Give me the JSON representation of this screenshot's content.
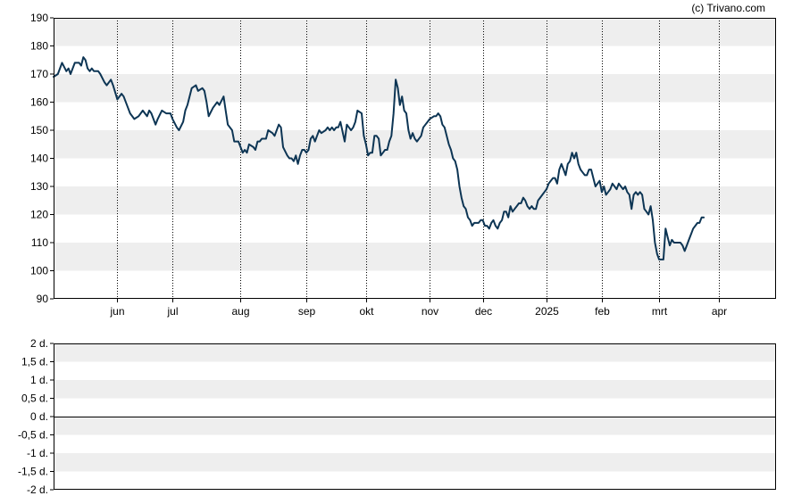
{
  "credit": "(c) Trivano.com",
  "colors": {
    "line": "#0d3554",
    "band": "#eeeeee",
    "grid": "#000000",
    "axis": "#000000"
  },
  "chart_data": [
    {
      "type": "line",
      "title": "",
      "xlabel": "",
      "ylabel": "",
      "ylim": [
        90,
        190
      ],
      "yticks": [
        "190",
        "180",
        "170",
        "160",
        "150",
        "140",
        "130",
        "120",
        "110",
        "100",
        "90"
      ],
      "xticks": [
        "jun",
        "jul",
        "aug",
        "sep",
        "okt",
        "nov",
        "dec",
        "2025",
        "feb",
        "mrt",
        "apr"
      ],
      "x_range_days": [
        0,
        340
      ],
      "xtick_days": [
        30,
        56,
        88,
        119,
        147,
        177,
        202,
        232,
        258,
        285,
        313
      ],
      "grid": "vertical dotted at month starts",
      "series": [
        {
          "points": [
            [
              0,
              169
            ],
            [
              2,
              170
            ],
            [
              4,
              174
            ],
            [
              6,
              171
            ],
            [
              7,
              172
            ],
            [
              8,
              170
            ],
            [
              10,
              174
            ],
            [
              12,
              174
            ],
            [
              13,
              173
            ],
            [
              14,
              176
            ],
            [
              15,
              175
            ],
            [
              16,
              172
            ],
            [
              17,
              171
            ],
            [
              18,
              172
            ],
            [
              19,
              171
            ],
            [
              21,
              171
            ],
            [
              22,
              170
            ],
            [
              24,
              167
            ],
            [
              25,
              166
            ],
            [
              27,
              168
            ],
            [
              28,
              166
            ],
            [
              30,
              161
            ],
            [
              32,
              163
            ],
            [
              33,
              162
            ],
            [
              35,
              158
            ],
            [
              36,
              156
            ],
            [
              38,
              154
            ],
            [
              40,
              155
            ],
            [
              42,
              157
            ],
            [
              43,
              156
            ],
            [
              44,
              155
            ],
            [
              45,
              157
            ],
            [
              46,
              156
            ],
            [
              48,
              152
            ],
            [
              49,
              154
            ],
            [
              51,
              157
            ],
            [
              53,
              156
            ],
            [
              55,
              156
            ],
            [
              56,
              154
            ],
            [
              58,
              151
            ],
            [
              59,
              150
            ],
            [
              61,
              153
            ],
            [
              62,
              157
            ],
            [
              63,
              159
            ],
            [
              65,
              165
            ],
            [
              67,
              166
            ],
            [
              68,
              164
            ],
            [
              70,
              165
            ],
            [
              71,
              164
            ],
            [
              72,
              160
            ],
            [
              73,
              155
            ],
            [
              75,
              158
            ],
            [
              77,
              160
            ],
            [
              78,
              159
            ],
            [
              80,
              162
            ],
            [
              81,
              157
            ],
            [
              82,
              152
            ],
            [
              84,
              150
            ],
            [
              85,
              146
            ],
            [
              87,
              146
            ],
            [
              88,
              144
            ],
            [
              89,
              142
            ],
            [
              90,
              143
            ],
            [
              91,
              142
            ],
            [
              92,
              145
            ],
            [
              94,
              144
            ],
            [
              95,
              143
            ],
            [
              96,
              146
            ],
            [
              97,
              146
            ],
            [
              98,
              147
            ],
            [
              100,
              147
            ],
            [
              101,
              150
            ],
            [
              103,
              149
            ],
            [
              104,
              148
            ],
            [
              106,
              152
            ],
            [
              107,
              151
            ],
            [
              108,
              144
            ],
            [
              110,
              141
            ],
            [
              111,
              140
            ],
            [
              112,
              140
            ],
            [
              113,
              139
            ],
            [
              114,
              141
            ],
            [
              115,
              138
            ],
            [
              116,
              141
            ],
            [
              117,
              143
            ],
            [
              118,
              143
            ],
            [
              119,
              142
            ],
            [
              120,
              143
            ],
            [
              121,
              147
            ],
            [
              122,
              148
            ],
            [
              123,
              146
            ],
            [
              124,
              148
            ],
            [
              125,
              150
            ],
            [
              126,
              149
            ],
            [
              128,
              150
            ],
            [
              129,
              151
            ],
            [
              130,
              150
            ],
            [
              131,
              151
            ],
            [
              132,
              150
            ],
            [
              133,
              151
            ],
            [
              134,
              151
            ],
            [
              135,
              153
            ],
            [
              137,
              146
            ],
            [
              138,
              152
            ],
            [
              139,
              151
            ],
            [
              140,
              150
            ],
            [
              141,
              151
            ],
            [
              142,
              153
            ],
            [
              143,
              157
            ],
            [
              145,
              156
            ],
            [
              146,
              148
            ],
            [
              147,
              145
            ],
            [
              148,
              141
            ],
            [
              149,
              142
            ],
            [
              150,
              142
            ],
            [
              151,
              148
            ],
            [
              152,
              148
            ],
            [
              153,
              147
            ],
            [
              154,
              141
            ],
            [
              155,
              142
            ],
            [
              156,
              143
            ],
            [
              157,
              143
            ],
            [
              158,
              146
            ],
            [
              159,
              148
            ],
            [
              160,
              156
            ],
            [
              161,
              168
            ],
            [
              162,
              165
            ],
            [
              163,
              159
            ],
            [
              164,
              162
            ],
            [
              165,
              157
            ],
            [
              166,
              156
            ],
            [
              167,
              150
            ],
            [
              168,
              147
            ],
            [
              169,
              149
            ],
            [
              170,
              147
            ],
            [
              171,
              146
            ],
            [
              173,
              148
            ],
            [
              174,
              151
            ],
            [
              175,
              152
            ],
            [
              176,
              153
            ],
            [
              177,
              154
            ],
            [
              179,
              155
            ],
            [
              180,
              155
            ],
            [
              181,
              156
            ],
            [
              182,
              155
            ],
            [
              183,
              152
            ],
            [
              184,
              151
            ],
            [
              185,
              148
            ],
            [
              186,
              145
            ],
            [
              187,
              143
            ],
            [
              188,
              140
            ],
            [
              189,
              139
            ],
            [
              190,
              136
            ],
            [
              191,
              130
            ],
            [
              192,
              126
            ],
            [
              193,
              123
            ],
            [
              194,
              122
            ],
            [
              195,
              119
            ],
            [
              196,
              118
            ],
            [
              197,
              116
            ],
            [
              198,
              117
            ],
            [
              199,
              117
            ],
            [
              200,
              117
            ],
            [
              201,
              118
            ],
            [
              202,
              118
            ],
            [
              203,
              116
            ],
            [
              204,
              116
            ],
            [
              205,
              115
            ],
            [
              206,
              117
            ],
            [
              207,
              118
            ],
            [
              208,
              116
            ],
            [
              209,
              115
            ],
            [
              210,
              117
            ],
            [
              211,
              118
            ],
            [
              212,
              121
            ],
            [
              213,
              121
            ],
            [
              214,
              119
            ],
            [
              215,
              123
            ],
            [
              216,
              121
            ],
            [
              217,
              122
            ],
            [
              218,
              123
            ],
            [
              219,
              124
            ],
            [
              220,
              124
            ],
            [
              221,
              126
            ],
            [
              222,
              125
            ],
            [
              223,
              123
            ],
            [
              224,
              122
            ],
            [
              225,
              123
            ],
            [
              226,
              122
            ],
            [
              227,
              122
            ],
            [
              228,
              125
            ],
            [
              229,
              126
            ],
            [
              230,
              127
            ],
            [
              231,
              128
            ],
            [
              232,
              129
            ],
            [
              233,
              131
            ],
            [
              234,
              132
            ],
            [
              235,
              133
            ],
            [
              236,
              133
            ],
            [
              237,
              131
            ],
            [
              238,
              136
            ],
            [
              239,
              138
            ],
            [
              240,
              136
            ],
            [
              241,
              134
            ],
            [
              242,
              138
            ],
            [
              243,
              139
            ],
            [
              244,
              142
            ],
            [
              245,
              140
            ],
            [
              246,
              142
            ],
            [
              247,
              138
            ],
            [
              248,
              136
            ],
            [
              249,
              135
            ],
            [
              250,
              134
            ],
            [
              251,
              134
            ],
            [
              252,
              136
            ],
            [
              253,
              136
            ],
            [
              254,
              133
            ],
            [
              255,
              130
            ],
            [
              256,
              131
            ],
            [
              257,
              132
            ],
            [
              258,
              128
            ],
            [
              259,
              130
            ],
            [
              260,
              127
            ],
            [
              261,
              128
            ],
            [
              262,
              129
            ],
            [
              263,
              131
            ],
            [
              264,
              130
            ],
            [
              265,
              129
            ],
            [
              266,
              131
            ],
            [
              267,
              130
            ],
            [
              268,
              129
            ],
            [
              269,
              130
            ],
            [
              270,
              128
            ],
            [
              271,
              127
            ],
            [
              272,
              122
            ],
            [
              273,
              127
            ],
            [
              274,
              128
            ],
            [
              275,
              127
            ],
            [
              276,
              128
            ],
            [
              277,
              127
            ],
            [
              278,
              122
            ],
            [
              279,
              121
            ],
            [
              280,
              120
            ],
            [
              281,
              123
            ],
            [
              282,
              118
            ],
            [
              283,
              110
            ],
            [
              284,
              106
            ],
            [
              285,
              104
            ],
            [
              286,
              104
            ],
            [
              287,
              104
            ],
            [
              288,
              115
            ],
            [
              289,
              112
            ],
            [
              290,
              109
            ],
            [
              291,
              111
            ],
            [
              292,
              110
            ],
            [
              293,
              110
            ],
            [
              294,
              110
            ],
            [
              295,
              110
            ],
            [
              296,
              109
            ],
            [
              297,
              107
            ],
            [
              298,
              109
            ],
            [
              299,
              111
            ],
            [
              300,
              113
            ],
            [
              301,
              115
            ],
            [
              302,
              116
            ],
            [
              303,
              117
            ],
            [
              304,
              117
            ],
            [
              305,
              119
            ],
            [
              306,
              119
            ]
          ]
        }
      ]
    },
    {
      "type": "line",
      "title": "",
      "xlabel": "",
      "ylabel": "",
      "ylim": [
        -2,
        2
      ],
      "yticks": [
        "2 d.",
        "1,5 d.",
        "1 d.",
        "0,5 d.",
        "0 d.",
        "-0,5 d.",
        "-1 d.",
        "-1,5 d.",
        "-2 d."
      ],
      "baseline": 0,
      "series": []
    }
  ]
}
